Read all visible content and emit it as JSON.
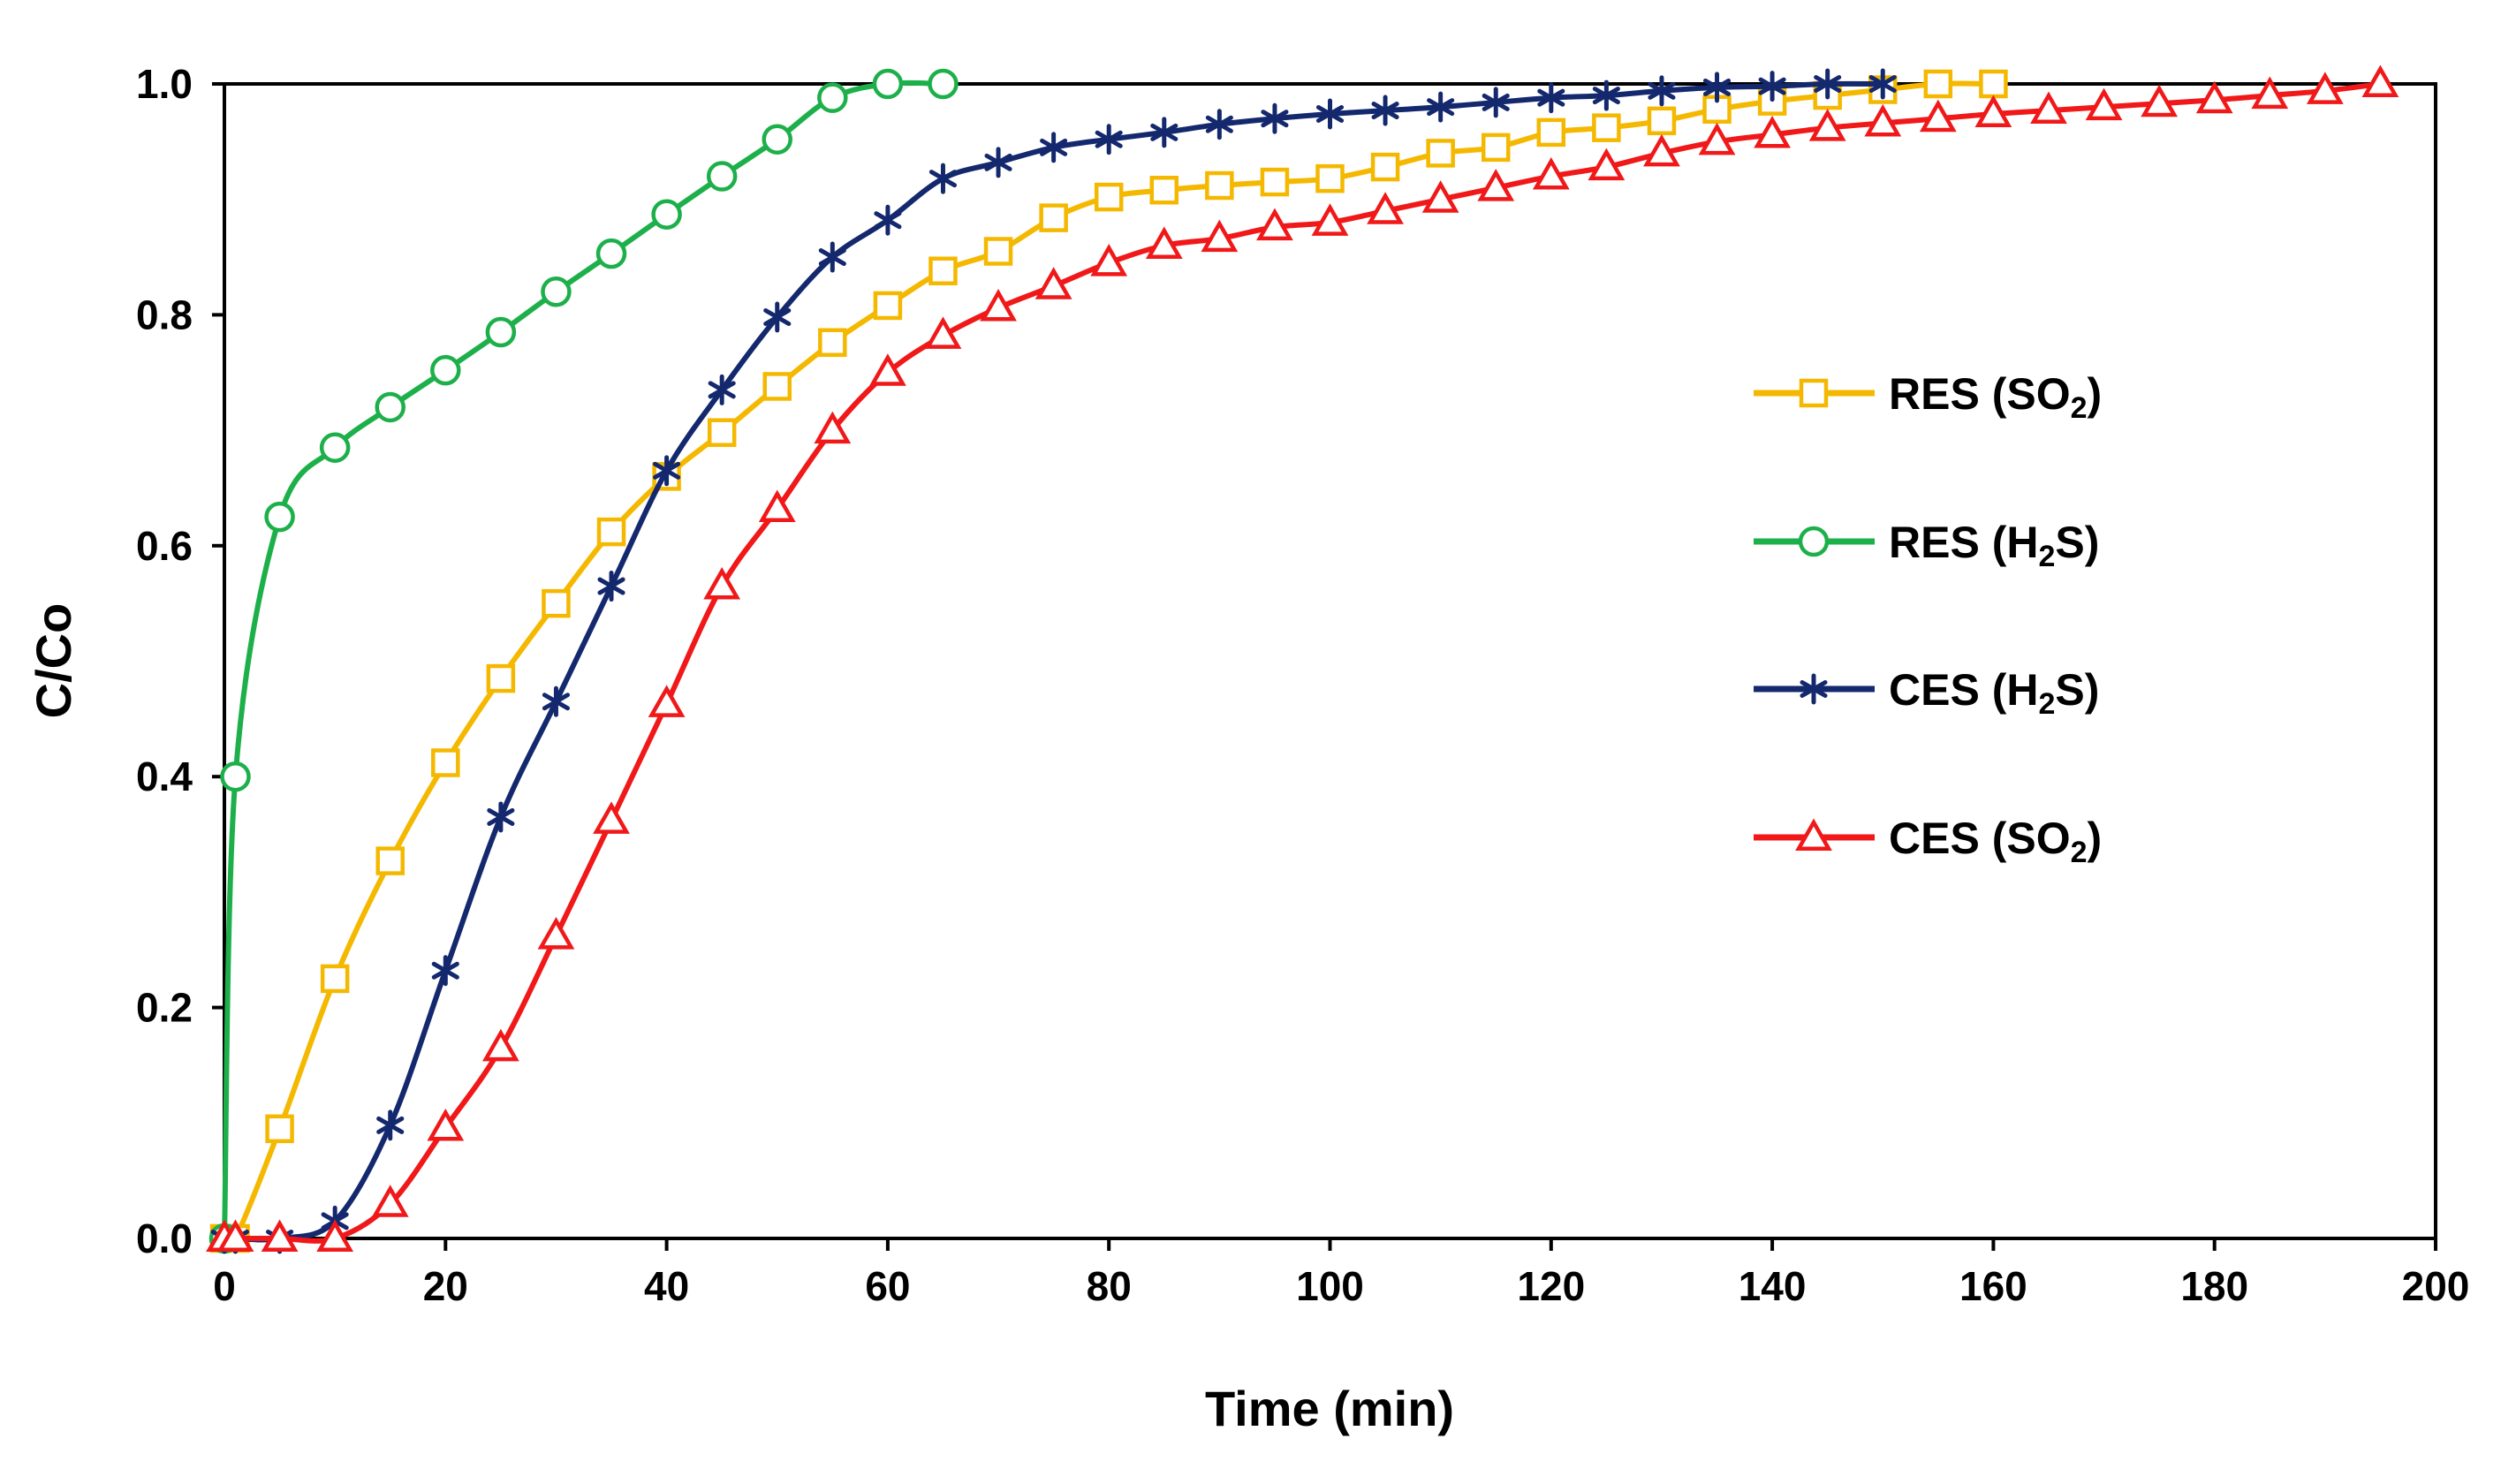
{
  "chart_data": {
    "type": "line",
    "title": "",
    "xlabel": "Time (min)",
    "ylabel": "C/Co",
    "xlim": [
      0,
      200
    ],
    "ylim": [
      0,
      1.0
    ],
    "xticks": [
      "0",
      "20",
      "40",
      "60",
      "80",
      "100",
      "120",
      "140",
      "160",
      "180",
      "200"
    ],
    "yticks": [
      "0.0",
      "0.2",
      "0.4",
      "0.6",
      "0.8",
      "1.0"
    ],
    "grid": false,
    "legend_position": "right",
    "series": [
      {
        "name": "RES (SO2)",
        "label_main": "RES (SO",
        "label_sub": "2",
        "label_tail": ")",
        "color": "#F5B800",
        "marker": "square",
        "x": [
          0,
          1,
          5,
          10,
          15,
          20,
          25,
          30,
          35,
          40,
          45,
          50,
          55,
          60,
          65,
          70,
          75,
          80,
          85,
          90,
          95,
          100,
          105,
          110,
          115,
          120,
          125,
          130,
          135,
          140,
          145,
          150,
          155,
          160
        ],
        "y": [
          0,
          0,
          0.095,
          0.225,
          0.327,
          0.412,
          0.485,
          0.55,
          0.612,
          0.66,
          0.698,
          0.738,
          0.776,
          0.808,
          0.838,
          0.855,
          0.884,
          0.902,
          0.908,
          0.912,
          0.915,
          0.918,
          0.928,
          0.94,
          0.945,
          0.958,
          0.962,
          0.968,
          0.978,
          0.985,
          0.99,
          0.995,
          1.0,
          1.0
        ]
      },
      {
        "name": "RES (H2S)",
        "label_main": "RES (H",
        "label_sub": "2",
        "label_tail": "S)",
        "color": "#1DB04A",
        "marker": "circle",
        "x": [
          0,
          1,
          5,
          10,
          15,
          20,
          25,
          30,
          35,
          40,
          45,
          50,
          55,
          60,
          65
        ],
        "y": [
          0,
          0.4,
          0.625,
          0.685,
          0.72,
          0.752,
          0.785,
          0.82,
          0.853,
          0.887,
          0.92,
          0.952,
          0.988,
          1.0,
          1.0
        ]
      },
      {
        "name": "CES (H2S)",
        "label_main": "CES (H",
        "label_sub": "2",
        "label_tail": "S)",
        "color": "#14286E",
        "marker": "asterisk",
        "x": [
          0,
          1,
          5,
          10,
          15,
          20,
          25,
          30,
          35,
          40,
          45,
          50,
          55,
          60,
          65,
          70,
          75,
          80,
          85,
          90,
          95,
          100,
          105,
          110,
          115,
          120,
          125,
          130,
          135,
          140,
          145,
          150
        ],
        "y": [
          0,
          0,
          0,
          0.015,
          0.098,
          0.232,
          0.365,
          0.465,
          0.565,
          0.665,
          0.735,
          0.798,
          0.85,
          0.882,
          0.918,
          0.932,
          0.945,
          0.952,
          0.958,
          0.965,
          0.97,
          0.974,
          0.977,
          0.98,
          0.984,
          0.988,
          0.99,
          0.994,
          0.997,
          0.998,
          1.0,
          1.0
        ]
      },
      {
        "name": "CES (SO2)",
        "label_main": "CES (SO",
        "label_sub": "2",
        "label_tail": ")",
        "color": "#F01818",
        "marker": "triangle",
        "x": [
          0,
          1,
          5,
          10,
          15,
          20,
          25,
          30,
          35,
          40,
          45,
          50,
          55,
          60,
          65,
          70,
          75,
          80,
          85,
          90,
          95,
          100,
          105,
          110,
          115,
          120,
          125,
          130,
          135,
          140,
          145,
          150,
          155,
          160,
          165,
          170,
          175,
          180,
          185,
          190,
          195
        ],
        "y": [
          0,
          0,
          0,
          0,
          0.03,
          0.096,
          0.165,
          0.262,
          0.362,
          0.463,
          0.565,
          0.632,
          0.7,
          0.75,
          0.782,
          0.806,
          0.825,
          0.845,
          0.86,
          0.866,
          0.876,
          0.88,
          0.89,
          0.9,
          0.91,
          0.92,
          0.928,
          0.94,
          0.95,
          0.956,
          0.962,
          0.966,
          0.97,
          0.974,
          0.977,
          0.98,
          0.983,
          0.986,
          0.99,
          0.994,
          1.0
        ]
      }
    ]
  }
}
